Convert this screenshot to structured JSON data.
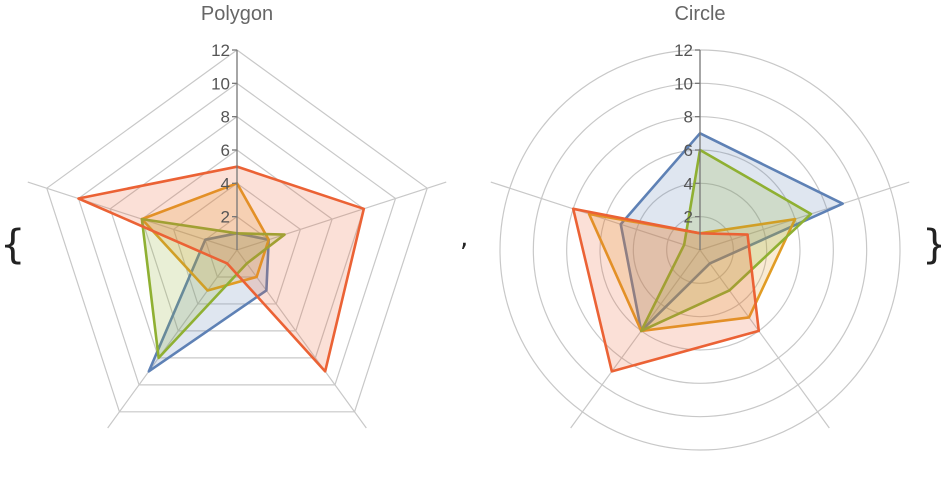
{
  "punctuation": {
    "open_brace": "{",
    "separator": ",",
    "close_brace": "}"
  },
  "chart_data": [
    {
      "type": "radar",
      "title": "Polygon",
      "grid_shape": "polygon",
      "axes_count": 5,
      "rmax": 12,
      "radial_ticks": [
        "2",
        "4",
        "6",
        "8",
        "10",
        "12"
      ],
      "series": [
        {
          "color": "#5e81b5",
          "values": [
            1,
            2,
            3,
            9,
            2
          ]
        },
        {
          "color": "#e19c24",
          "values": [
            4,
            2,
            2,
            3,
            6
          ]
        },
        {
          "color": "#8fb032",
          "values": [
            1,
            3,
            1,
            8,
            6
          ]
        },
        {
          "color": "#eb6235",
          "values": [
            5,
            8,
            9,
            1,
            10
          ]
        }
      ]
    },
    {
      "type": "radar",
      "title": "Circle",
      "grid_shape": "circle",
      "axes_count": 5,
      "rmax": 12,
      "radial_ticks": [
        "2",
        "4",
        "6",
        "8",
        "10",
        "12"
      ],
      "series": [
        {
          "color": "#5e81b5",
          "values": [
            7,
            9,
            1,
            6,
            5
          ]
        },
        {
          "color": "#e19c24",
          "values": [
            1,
            6,
            5,
            6,
            7
          ]
        },
        {
          "color": "#8fb032",
          "values": [
            6,
            7,
            3,
            6,
            1
          ]
        },
        {
          "color": "#eb6235",
          "values": [
            1,
            3,
            6,
            9,
            8
          ]
        }
      ]
    }
  ]
}
